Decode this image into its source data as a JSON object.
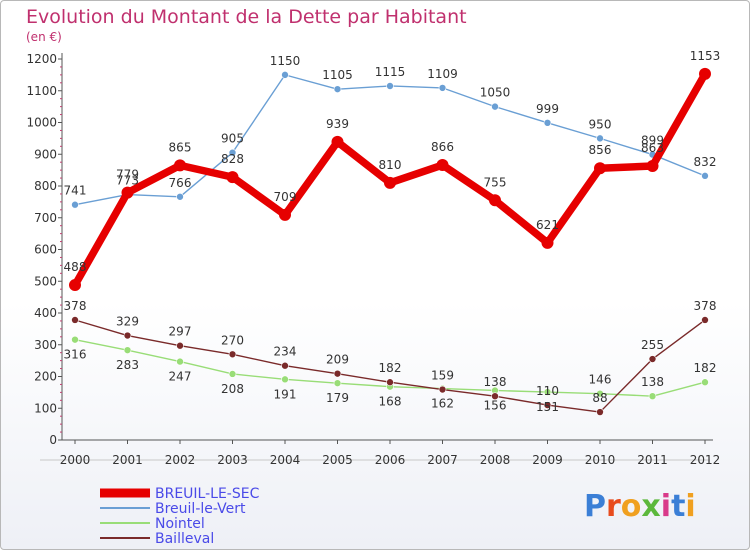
{
  "chart_data": {
    "type": "line",
    "title": "Evolution du Montant de la Dette par Habitant",
    "subtitle": "(en €)",
    "categories": [
      "2000",
      "2001",
      "2002",
      "2003",
      "2004",
      "2005",
      "2006",
      "2007",
      "2008",
      "2009",
      "2010",
      "2011",
      "2012"
    ],
    "ylim": [
      0,
      1200
    ],
    "yticks": [
      0,
      100,
      200,
      300,
      400,
      500,
      600,
      700,
      800,
      900,
      1000,
      1100,
      1200
    ],
    "grid": false,
    "legend_placement": "bottom-left",
    "series": [
      {
        "name": "BREUIL-LE-SEC",
        "color": "#e60000",
        "values": [
          488,
          779,
          865,
          828,
          709,
          939,
          810,
          866,
          755,
          621,
          856,
          863,
          1153
        ]
      },
      {
        "name": "Breuil-le-Vert",
        "color": "#6a9fd4",
        "values": [
          741,
          773,
          766,
          905,
          1150,
          1105,
          1115,
          1109,
          1050,
          999,
          950,
          899,
          832
        ]
      },
      {
        "name": "Nointel",
        "color": "#99dd77",
        "values": [
          316,
          283,
          247,
          208,
          191,
          179,
          168,
          162,
          156,
          151,
          146,
          138,
          182
        ]
      },
      {
        "name": "Bailleval",
        "color": "#7a2a2a",
        "values": [
          378,
          329,
          297,
          270,
          234,
          209,
          182,
          159,
          138,
          110,
          88,
          255,
          378
        ]
      }
    ]
  },
  "logo": {
    "text": "Proxiti",
    "letter_colors": [
      "#3b7fd6",
      "#e84c1e",
      "#f0a020",
      "#5cb83c",
      "#d93a8a",
      "#3b7fd6",
      "#f0a020"
    ]
  }
}
